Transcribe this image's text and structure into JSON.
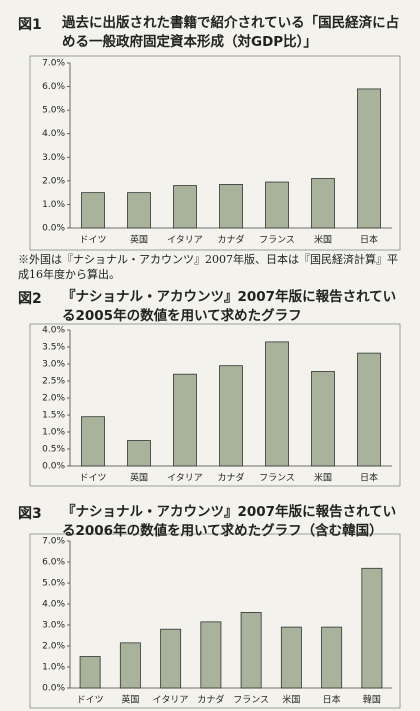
{
  "chart_data": [
    {
      "type": "bar",
      "label": "図1",
      "title": "過去に出版された書籍で紹介されている「国民経済に占める一般政府固定資本形成（対GDP比）」",
      "note": "※外国は『ナショナル・アカウンツ』2007年版、日本は『国民経済計算』平成16年度から算出。",
      "categories": [
        "ドイツ",
        "英国",
        "イタリア",
        "カナダ",
        "フランス",
        "米国",
        "日本"
      ],
      "values": [
        1.5,
        1.5,
        1.8,
        1.85,
        1.95,
        2.1,
        5.9
      ],
      "color": "#a9b39b",
      "ylim": [
        0,
        7
      ],
      "yticks": [
        {
          "value": 0,
          "label": "0.0%"
        },
        {
          "value": 1,
          "label": "1.0%"
        },
        {
          "value": 2,
          "label": "2.0%"
        },
        {
          "value": 3,
          "label": "3.0%"
        },
        {
          "value": 4,
          "label": "4.0%"
        },
        {
          "value": 5,
          "label": "5.0%"
        },
        {
          "value": 6,
          "label": "6.0%"
        },
        {
          "value": 7,
          "label": "7.0%"
        }
      ]
    },
    {
      "type": "bar",
      "label": "図2",
      "title": "『ナショナル・アカウンツ』2007年版に報告されている2005年の数値を用いて求めたグラフ",
      "categories": [
        "ドイツ",
        "英国",
        "イタリア",
        "カナダ",
        "フランス",
        "米国",
        "日本"
      ],
      "values": [
        1.45,
        0.75,
        2.7,
        2.95,
        3.65,
        2.78,
        3.32
      ],
      "color": "#a9b39b",
      "ylim": [
        0,
        4
      ],
      "yticks": [
        {
          "value": 0,
          "label": "0.0%"
        },
        {
          "value": 0.5,
          "label": "0.5%"
        },
        {
          "value": 1,
          "label": "1.0%"
        },
        {
          "value": 1.5,
          "label": "1.5%"
        },
        {
          "value": 2,
          "label": "2.0%"
        },
        {
          "value": 2.5,
          "label": "2.5%"
        },
        {
          "value": 3,
          "label": "3.0%"
        },
        {
          "value": 3.5,
          "label": "3.5%"
        },
        {
          "value": 4,
          "label": "4.0%"
        }
      ]
    },
    {
      "type": "bar",
      "label": "図3",
      "title": "『ナショナル・アカウンツ』2007年版に報告されている2006年の数値を用いて求めたグラフ（含む韓国）",
      "categories": [
        "ドイツ",
        "英国",
        "イタリア",
        "カナダ",
        "フランス",
        "米国",
        "日本",
        "韓国"
      ],
      "values": [
        1.5,
        2.15,
        2.8,
        3.15,
        3.6,
        2.9,
        2.9,
        5.7
      ],
      "color": "#a9b39b",
      "ylim": [
        0,
        7
      ],
      "yticks": [
        {
          "value": 0,
          "label": "0.0%"
        },
        {
          "value": 1,
          "label": "1.0%"
        },
        {
          "value": 2,
          "label": "2.0%"
        },
        {
          "value": 3,
          "label": "3.0%"
        },
        {
          "value": 4,
          "label": "4.0%"
        },
        {
          "value": 5,
          "label": "5.0%"
        },
        {
          "value": 6,
          "label": "6.0%"
        },
        {
          "value": 7,
          "label": "7.0%"
        }
      ]
    }
  ]
}
